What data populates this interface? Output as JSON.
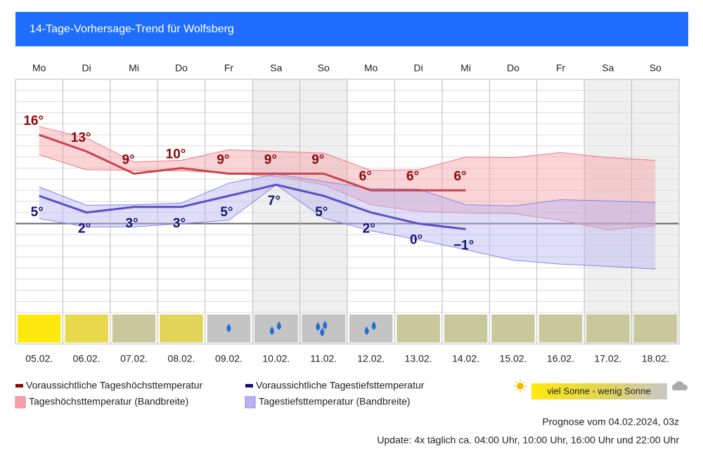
{
  "chart_data": {
    "type": "line",
    "title": "14-Tage-Vorhersage-Trend für Wolfsberg",
    "categories": [
      "Mo",
      "Di",
      "Mi",
      "Do",
      "Fr",
      "Sa",
      "So",
      "Mo",
      "Di",
      "Mi",
      "Do",
      "Fr",
      "Sa",
      "So"
    ],
    "dates": [
      "05.02.",
      "06.02.",
      "07.02.",
      "08.02.",
      "09.02.",
      "10.02.",
      "11.02.",
      "12.02.",
      "13.02.",
      "14.02.",
      "15.02.",
      "16.02.",
      "17.02.",
      "18.02."
    ],
    "ylim": [
      -16,
      26
    ],
    "yticks": [
      -16,
      -14,
      -12,
      -10,
      -8,
      -6,
      -4,
      -2,
      0,
      2,
      4,
      6,
      8,
      10,
      12,
      14,
      16,
      18,
      20,
      22,
      24,
      26
    ],
    "grid": true,
    "series": [
      {
        "name": "Voraussichtliche Tageshöchsttemperatur",
        "color": "#c8454c",
        "label_color": "#8b0a0a",
        "values": [
          16,
          13,
          9,
          10,
          9,
          9,
          9,
          6,
          6,
          6,
          null,
          null,
          null,
          null
        ],
        "value_labels": [
          "16°",
          "13°",
          "9°",
          "10°",
          "9°",
          "9°",
          "9°",
          "6°",
          "6°",
          "6°",
          null,
          null,
          null,
          null
        ]
      },
      {
        "name": "Voraussichtliche Tagestiefsttemperatur",
        "color": "#5a4fc4",
        "label_color": "#14146e",
        "values": [
          5,
          2,
          3,
          3,
          5,
          7,
          5,
          2,
          0,
          -1,
          null,
          null,
          null,
          null
        ],
        "value_labels": [
          "5°",
          "2°",
          "3°",
          "3°",
          "5°",
          "7°",
          "5°",
          "2°",
          "0°",
          "−1°",
          null,
          null,
          null,
          null
        ]
      }
    ],
    "bands": [
      {
        "name": "Tageshöchsttemperatur (Bandbreite)",
        "color": "#f4a0a6",
        "line": "#f07a82",
        "upper": [
          17.5,
          15.4,
          11.1,
          11.4,
          13.3,
          13.0,
          12.7,
          9.6,
          9.7,
          12.0,
          11.9,
          12.8,
          11.9,
          11.4
        ],
        "lower": [
          12.4,
          9.7,
          9.6,
          9.5,
          9.1,
          8.5,
          7.0,
          3.4,
          2.2,
          1.9,
          1.8,
          0.6,
          -1.1,
          -0.4
        ]
      },
      {
        "name": "Tagestiefsttemperatur (Bandbreite)",
        "color": "#b8b4f0",
        "line": "#8a84ee",
        "upper": [
          6.6,
          3.3,
          3.4,
          3.7,
          7.3,
          8.9,
          7.6,
          6.3,
          6.2,
          3.4,
          3.2,
          4.3,
          4.1,
          3.8
        ],
        "lower": [
          0.9,
          -0.6,
          -0.6,
          0,
          0.6,
          7.0,
          1.0,
          -1.3,
          -2.9,
          -4.7,
          -6.6,
          -7.3,
          -7.7,
          -8.2
        ]
      }
    ],
    "sky_colors": [
      "#fde910",
      "#e8d84c",
      "#c9c79c",
      "#e2d35a",
      "#c4c4c4",
      "#c4c4c4",
      "#c4c4c4",
      "#c4c4c4",
      "#c9c79c",
      "#c9c79c",
      "#c9c79c",
      "#c9c79c",
      "#c9c79c",
      "#c9c79c"
    ],
    "rain_drops": [
      0,
      0,
      0,
      0,
      1,
      2,
      3,
      2,
      0,
      0,
      0,
      0,
      0,
      0
    ],
    "sun_scale_label": "viel Sonne - wenig Sonne"
  },
  "footer": {
    "forecast": "Prognose vom 04.02.2024, 03z",
    "update": "Update: 4x täglich ca. 04:00 Uhr, 10:00 Uhr, 16:00 Uhr und 22:00 Uhr"
  }
}
